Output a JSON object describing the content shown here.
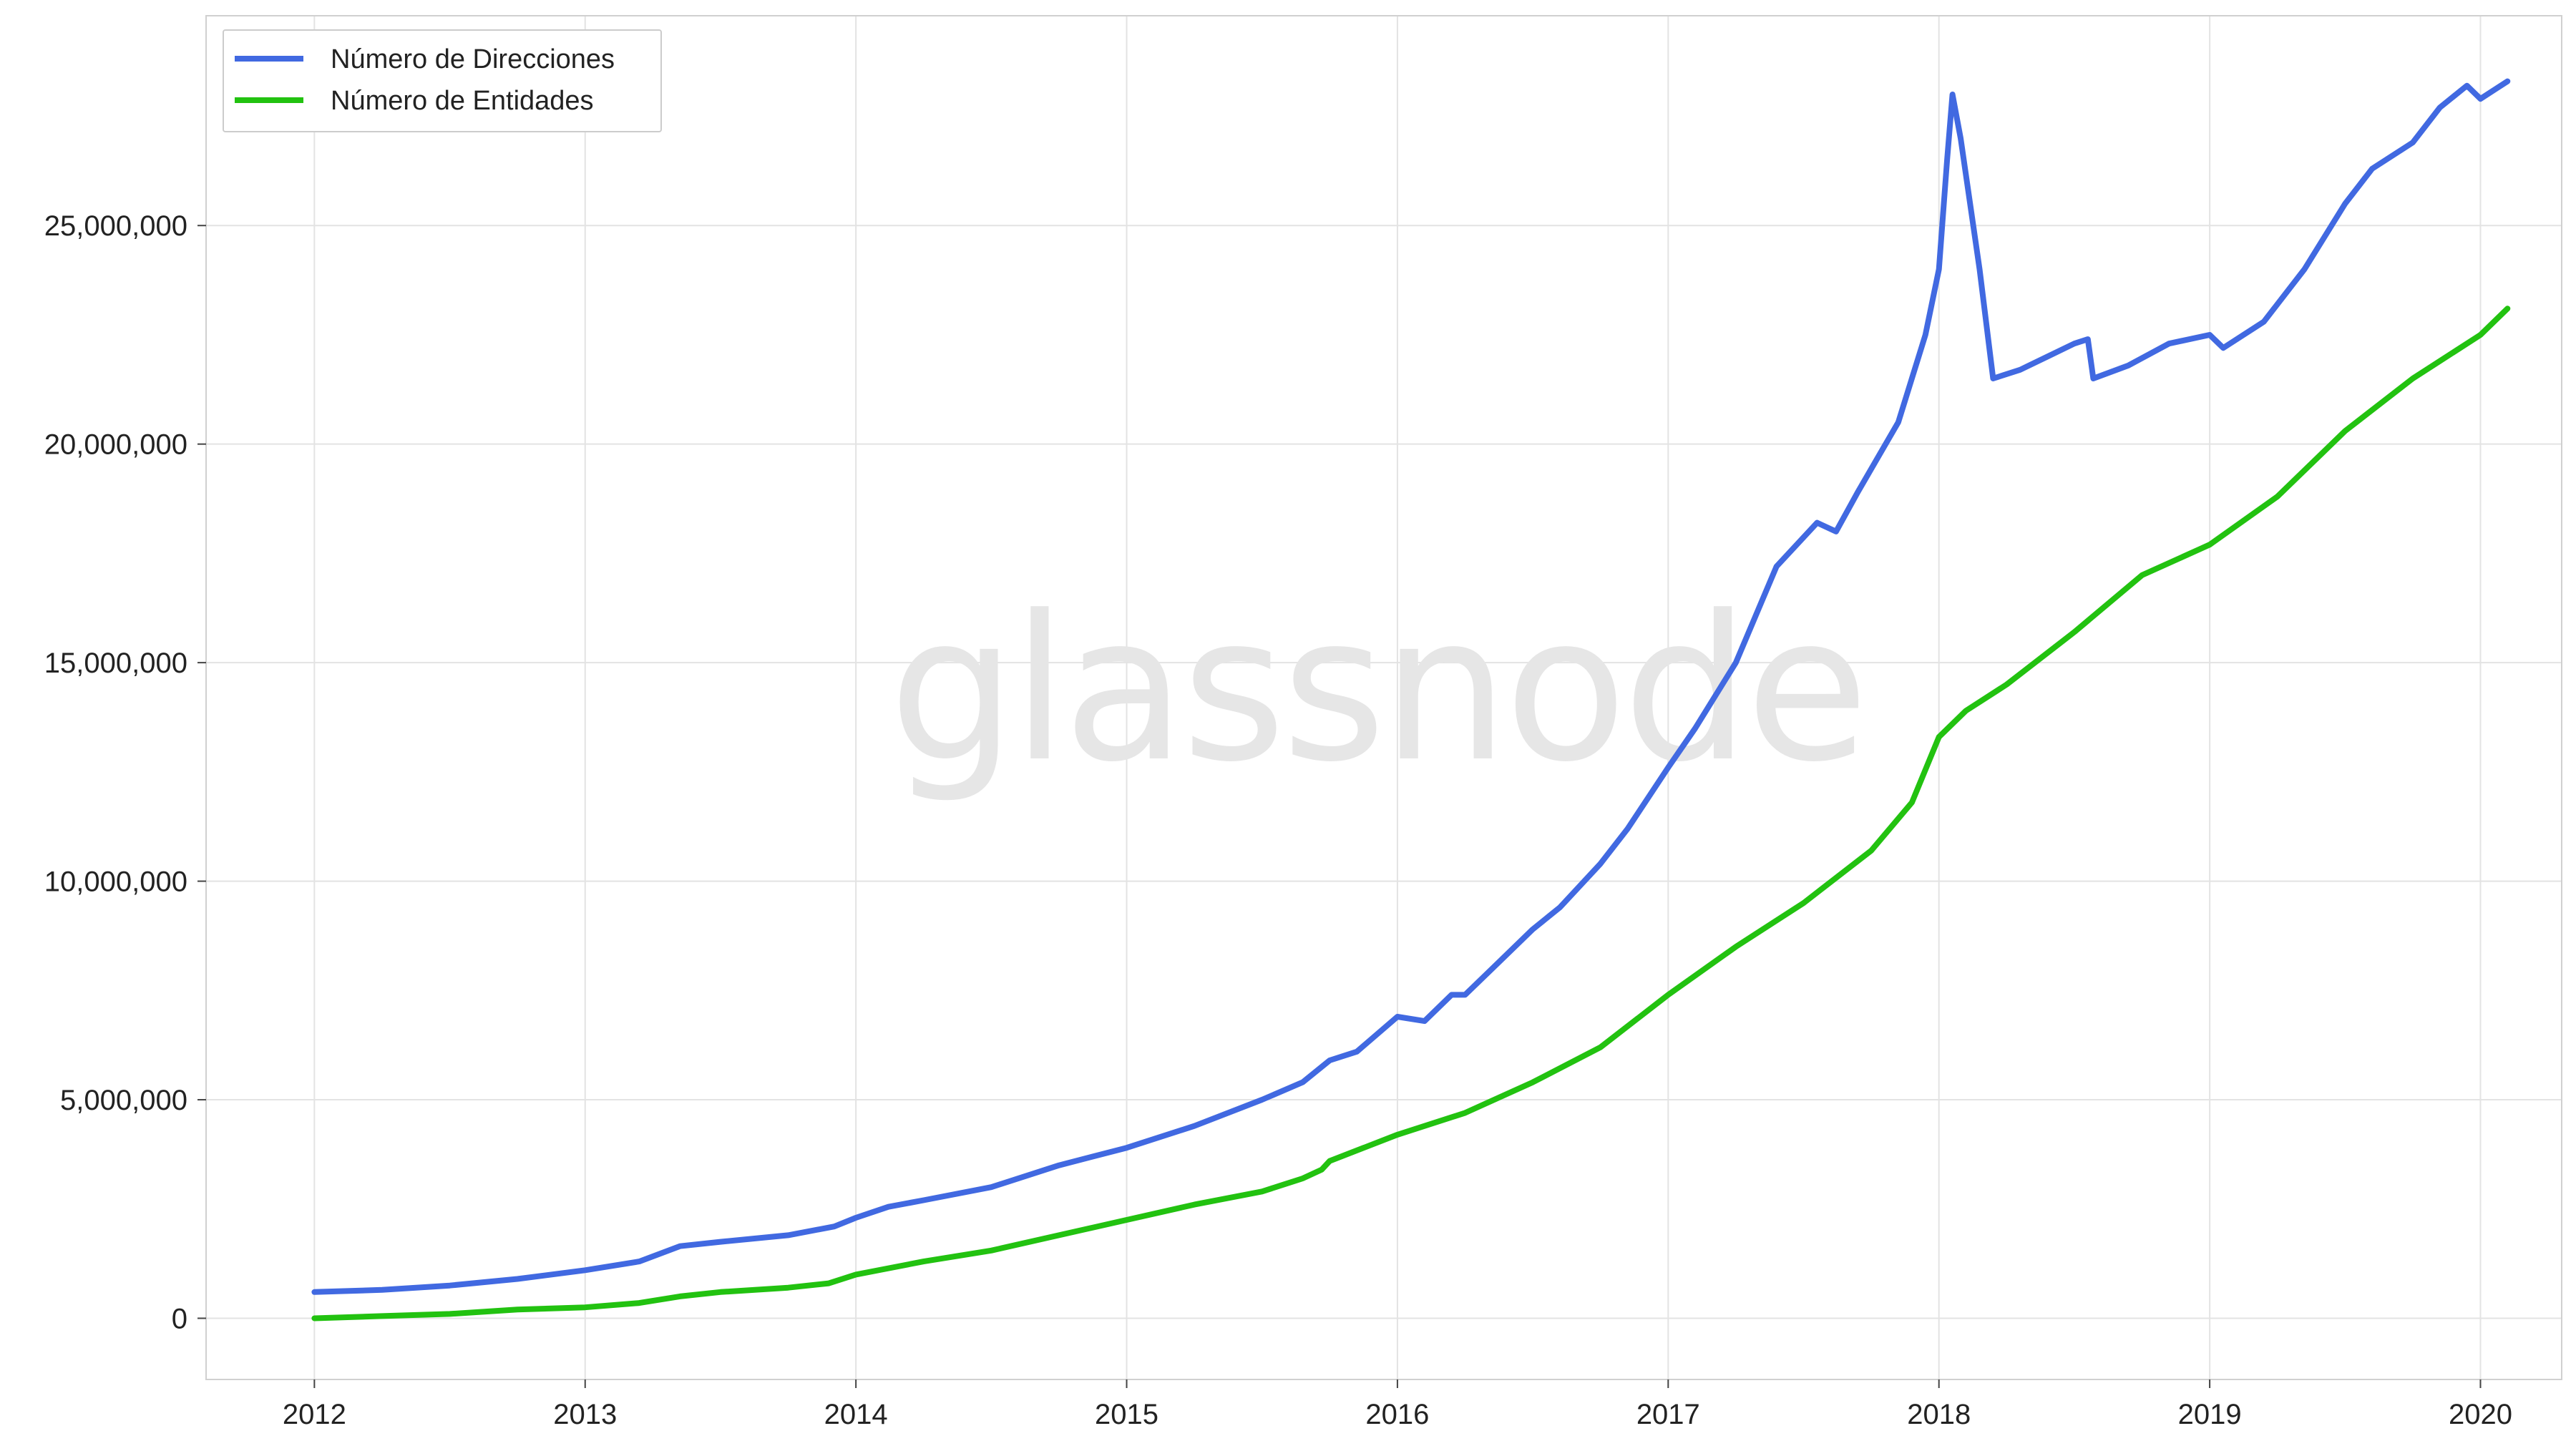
{
  "watermark": "glassnode",
  "chart_data": {
    "type": "line",
    "title": "",
    "xlabel": "",
    "ylabel": "",
    "x_ticks": [
      "2012",
      "2013",
      "2014",
      "2015",
      "2016",
      "2017",
      "2018",
      "2019",
      "2020"
    ],
    "y_ticks": [
      "0",
      "5,000,000",
      "10,000,000",
      "15,000,000",
      "20,000,000",
      "25,000,000"
    ],
    "xlim": [
      2011.6,
      2020.3
    ],
    "ylim": [
      -1400000,
      29800000
    ],
    "grid": true,
    "legend_position": "top-left",
    "series": [
      {
        "name": "Número de Direcciones",
        "color": "#4169e1",
        "points": [
          [
            2012.0,
            600000
          ],
          [
            2012.25,
            650000
          ],
          [
            2012.5,
            750000
          ],
          [
            2012.75,
            900000
          ],
          [
            2013.0,
            1100000
          ],
          [
            2013.2,
            1300000
          ],
          [
            2013.35,
            1650000
          ],
          [
            2013.5,
            1750000
          ],
          [
            2013.75,
            1900000
          ],
          [
            2013.92,
            2100000
          ],
          [
            2014.0,
            2300000
          ],
          [
            2014.12,
            2550000
          ],
          [
            2014.25,
            2700000
          ],
          [
            2014.5,
            3000000
          ],
          [
            2014.75,
            3500000
          ],
          [
            2015.0,
            3900000
          ],
          [
            2015.25,
            4400000
          ],
          [
            2015.5,
            5000000
          ],
          [
            2015.65,
            5400000
          ],
          [
            2015.75,
            5900000
          ],
          [
            2015.85,
            6100000
          ],
          [
            2016.0,
            6900000
          ],
          [
            2016.1,
            6800000
          ],
          [
            2016.2,
            7400000
          ],
          [
            2016.25,
            7400000
          ],
          [
            2016.35,
            8000000
          ],
          [
            2016.5,
            8900000
          ],
          [
            2016.6,
            9400000
          ],
          [
            2016.75,
            10400000
          ],
          [
            2016.85,
            11200000
          ],
          [
            2017.0,
            12600000
          ],
          [
            2017.1,
            13500000
          ],
          [
            2017.25,
            15000000
          ],
          [
            2017.4,
            17200000
          ],
          [
            2017.55,
            18200000
          ],
          [
            2017.62,
            18000000
          ],
          [
            2017.7,
            18900000
          ],
          [
            2017.85,
            20500000
          ],
          [
            2017.95,
            22500000
          ],
          [
            2018.0,
            24000000
          ],
          [
            2018.03,
            26500000
          ],
          [
            2018.05,
            28000000
          ],
          [
            2018.08,
            27000000
          ],
          [
            2018.15,
            24000000
          ],
          [
            2018.2,
            21500000
          ],
          [
            2018.3,
            21700000
          ],
          [
            2018.4,
            22000000
          ],
          [
            2018.5,
            22300000
          ],
          [
            2018.55,
            22400000
          ],
          [
            2018.57,
            21500000
          ],
          [
            2018.7,
            21800000
          ],
          [
            2018.85,
            22300000
          ],
          [
            2019.0,
            22500000
          ],
          [
            2019.05,
            22200000
          ],
          [
            2019.2,
            22800000
          ],
          [
            2019.35,
            24000000
          ],
          [
            2019.5,
            25500000
          ],
          [
            2019.6,
            26300000
          ],
          [
            2019.75,
            26900000
          ],
          [
            2019.85,
            27700000
          ],
          [
            2019.95,
            28200000
          ],
          [
            2020.0,
            27900000
          ],
          [
            2020.1,
            28300000
          ]
        ]
      },
      {
        "name": "Número de Entidades",
        "color": "#22c210",
        "points": [
          [
            2012.0,
            0
          ],
          [
            2012.25,
            50000
          ],
          [
            2012.5,
            100000
          ],
          [
            2012.75,
            200000
          ],
          [
            2013.0,
            250000
          ],
          [
            2013.2,
            350000
          ],
          [
            2013.35,
            500000
          ],
          [
            2013.5,
            600000
          ],
          [
            2013.75,
            700000
          ],
          [
            2013.9,
            800000
          ],
          [
            2014.0,
            1000000
          ],
          [
            2014.25,
            1300000
          ],
          [
            2014.5,
            1550000
          ],
          [
            2014.75,
            1900000
          ],
          [
            2015.0,
            2250000
          ],
          [
            2015.25,
            2600000
          ],
          [
            2015.5,
            2900000
          ],
          [
            2015.65,
            3200000
          ],
          [
            2015.72,
            3400000
          ],
          [
            2015.75,
            3600000
          ],
          [
            2016.0,
            4200000
          ],
          [
            2016.25,
            4700000
          ],
          [
            2016.5,
            5400000
          ],
          [
            2016.75,
            6200000
          ],
          [
            2017.0,
            7400000
          ],
          [
            2017.25,
            8500000
          ],
          [
            2017.5,
            9500000
          ],
          [
            2017.75,
            10700000
          ],
          [
            2017.9,
            11800000
          ],
          [
            2018.0,
            13300000
          ],
          [
            2018.1,
            13900000
          ],
          [
            2018.25,
            14500000
          ],
          [
            2018.5,
            15700000
          ],
          [
            2018.75,
            17000000
          ],
          [
            2019.0,
            17700000
          ],
          [
            2019.25,
            18800000
          ],
          [
            2019.5,
            20300000
          ],
          [
            2019.75,
            21500000
          ],
          [
            2020.0,
            22500000
          ],
          [
            2020.1,
            23100000
          ]
        ]
      }
    ]
  }
}
